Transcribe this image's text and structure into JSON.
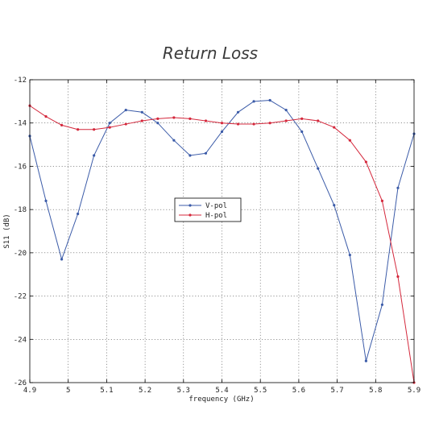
{
  "chart_data": {
    "type": "line",
    "title": "Return Loss",
    "xlabel": "frequency (GHz)",
    "ylabel": "S11 (dB)",
    "xlim": [
      4.9,
      5.9
    ],
    "ylim": [
      -26,
      -12
    ],
    "xticks": [
      4.9,
      5.0,
      5.1,
      5.2,
      5.3,
      5.4,
      5.5,
      5.6,
      5.7,
      5.8,
      5.9
    ],
    "xtick_labels": [
      "4.9",
      "5",
      "5.1",
      "5.2",
      "5.3",
      "5.4",
      "5.5",
      "5.6",
      "5.7",
      "5.8",
      "5.9"
    ],
    "yticks": [
      -12,
      -14,
      -16,
      -18,
      -20,
      -22,
      -24,
      -26
    ],
    "ytick_labels": [
      "-12",
      "-14",
      "-16",
      "-18",
      "-20",
      "-22",
      "-24",
      "-26"
    ],
    "grid": true,
    "legend_position": "center-left",
    "series": [
      {
        "name": "V-pol",
        "color": "#3b5ba8",
        "points": [
          [
            4.9,
            -14.6
          ],
          [
            4.942,
            -17.6
          ],
          [
            4.983,
            -20.3
          ],
          [
            5.025,
            -18.2
          ],
          [
            5.067,
            -15.5
          ],
          [
            5.108,
            -14.0
          ],
          [
            5.15,
            -13.4
          ],
          [
            5.192,
            -13.5
          ],
          [
            5.233,
            -14.0
          ],
          [
            5.275,
            -14.8
          ],
          [
            5.317,
            -15.5
          ],
          [
            5.358,
            -15.4
          ],
          [
            5.4,
            -14.4
          ],
          [
            5.442,
            -13.5
          ],
          [
            5.483,
            -13.0
          ],
          [
            5.525,
            -12.95
          ],
          [
            5.567,
            -13.4
          ],
          [
            5.608,
            -14.4
          ],
          [
            5.65,
            -16.1
          ],
          [
            5.692,
            -17.8
          ],
          [
            5.733,
            -20.1
          ],
          [
            5.775,
            -25.0
          ],
          [
            5.817,
            -22.4
          ],
          [
            5.858,
            -17.0
          ],
          [
            5.9,
            -14.5
          ]
        ]
      },
      {
        "name": "H-pol",
        "color": "#d4283c",
        "points": [
          [
            4.9,
            -13.2
          ],
          [
            4.942,
            -13.7
          ],
          [
            4.983,
            -14.1
          ],
          [
            5.025,
            -14.3
          ],
          [
            5.067,
            -14.3
          ],
          [
            5.108,
            -14.2
          ],
          [
            5.15,
            -14.05
          ],
          [
            5.192,
            -13.9
          ],
          [
            5.233,
            -13.8
          ],
          [
            5.275,
            -13.75
          ],
          [
            5.317,
            -13.8
          ],
          [
            5.358,
            -13.9
          ],
          [
            5.4,
            -14.0
          ],
          [
            5.442,
            -14.05
          ],
          [
            5.483,
            -14.05
          ],
          [
            5.525,
            -14.0
          ],
          [
            5.567,
            -13.9
          ],
          [
            5.608,
            -13.8
          ],
          [
            5.65,
            -13.9
          ],
          [
            5.692,
            -14.2
          ],
          [
            5.733,
            -14.8
          ],
          [
            5.775,
            -15.8
          ],
          [
            5.817,
            -17.6
          ],
          [
            5.858,
            -21.1
          ],
          [
            5.9,
            -26.0
          ]
        ]
      }
    ]
  }
}
